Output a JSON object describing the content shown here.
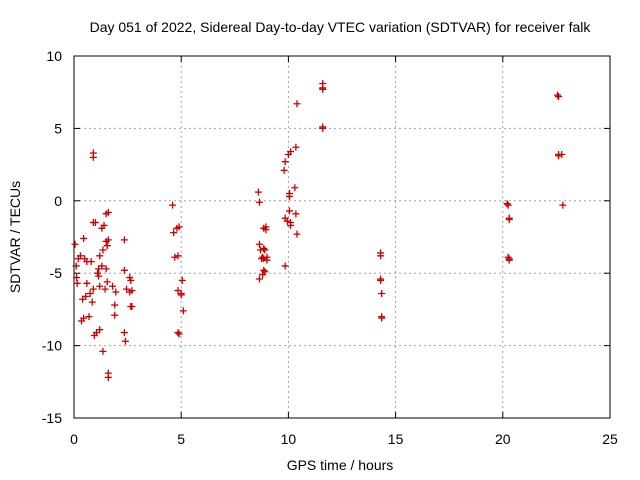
{
  "chart_data": {
    "type": "scatter",
    "title": "Day 051 of 2022, Sidereal Day-to-day VTEC variation (SDTVAR) for receiver falk",
    "xlabel": "GPS time / hours",
    "ylabel": "SDTVAR / TECUs",
    "xlim": [
      0,
      25
    ],
    "ylim": [
      -15,
      10
    ],
    "xticks": [
      0,
      5,
      10,
      15,
      20,
      25
    ],
    "yticks": [
      -15,
      -10,
      -5,
      0,
      5,
      10
    ],
    "grid": true,
    "marker": "+",
    "series": [
      {
        "name": "SDTVAR",
        "color": "#cc0000",
        "points": [
          [
            0.05,
            -3.0
          ],
          [
            0.1,
            -4.5
          ],
          [
            0.12,
            -5.3
          ],
          [
            0.15,
            -5.7
          ],
          [
            0.2,
            -4.0
          ],
          [
            0.3,
            -3.8
          ],
          [
            0.35,
            -8.3
          ],
          [
            0.4,
            -6.8
          ],
          [
            0.45,
            -8.1
          ],
          [
            0.45,
            -2.6
          ],
          [
            0.5,
            -4.0
          ],
          [
            0.55,
            -6.6
          ],
          [
            0.6,
            -4.2
          ],
          [
            0.6,
            -5.7
          ],
          [
            0.7,
            -8.0
          ],
          [
            0.75,
            -6.4
          ],
          [
            0.8,
            -4.2
          ],
          [
            0.85,
            -7.0
          ],
          [
            0.9,
            3.3
          ],
          [
            0.9,
            3.0
          ],
          [
            0.9,
            -1.5
          ],
          [
            0.9,
            -6.1
          ],
          [
            0.95,
            -9.3
          ],
          [
            1.0,
            -1.5
          ],
          [
            1.05,
            -9.1
          ],
          [
            1.1,
            -5.0
          ],
          [
            1.15,
            -5.2
          ],
          [
            1.15,
            -4.7
          ],
          [
            1.2,
            -3.8
          ],
          [
            1.2,
            -5.9
          ],
          [
            1.2,
            -8.9
          ],
          [
            1.3,
            -1.9
          ],
          [
            1.3,
            -4.5
          ],
          [
            1.35,
            -3.4
          ],
          [
            1.35,
            -10.4
          ],
          [
            1.4,
            -1.7
          ],
          [
            1.45,
            -6.1
          ],
          [
            1.5,
            -4.7
          ],
          [
            1.5,
            -2.8
          ],
          [
            1.5,
            -0.9
          ],
          [
            1.55,
            -3.1
          ],
          [
            1.55,
            -5.6
          ],
          [
            1.6,
            -12.2
          ],
          [
            1.6,
            -11.9
          ],
          [
            1.6,
            -2.7
          ],
          [
            1.6,
            -0.8
          ],
          [
            1.8,
            -5.9
          ],
          [
            1.9,
            -7.2
          ],
          [
            1.9,
            -7.9
          ],
          [
            1.95,
            -6.3
          ],
          [
            2.35,
            -2.7
          ],
          [
            2.35,
            -4.8
          ],
          [
            2.35,
            -9.1
          ],
          [
            2.4,
            -9.7
          ],
          [
            2.45,
            -6.1
          ],
          [
            2.6,
            -5.3
          ],
          [
            2.6,
            -6.3
          ],
          [
            2.65,
            -5.5
          ],
          [
            2.65,
            -7.3
          ],
          [
            2.7,
            -6.2
          ],
          [
            2.7,
            -7.3
          ],
          [
            4.6,
            -0.3
          ],
          [
            4.65,
            -2.2
          ],
          [
            4.7,
            -3.9
          ],
          [
            4.8,
            -1.9
          ],
          [
            4.85,
            -3.8
          ],
          [
            4.85,
            -6.2
          ],
          [
            4.85,
            -9.1
          ],
          [
            4.9,
            -9.2
          ],
          [
            4.9,
            -1.8
          ],
          [
            5.0,
            -6.4
          ],
          [
            5.0,
            -6.5
          ],
          [
            5.05,
            -5.5
          ],
          [
            5.1,
            -7.6
          ],
          [
            8.6,
            0.6
          ],
          [
            8.65,
            -0.1
          ],
          [
            8.65,
            -3.0
          ],
          [
            8.65,
            -5.4
          ],
          [
            8.7,
            -3.4
          ],
          [
            8.75,
            -4.0
          ],
          [
            8.8,
            -3.9
          ],
          [
            8.8,
            -5.1
          ],
          [
            8.85,
            -1.9
          ],
          [
            8.85,
            -3.3
          ],
          [
            8.85,
            -4.0
          ],
          [
            8.85,
            -4.8
          ],
          [
            8.9,
            -3.4
          ],
          [
            8.9,
            -4.9
          ],
          [
            8.95,
            -2.0
          ],
          [
            8.95,
            -1.8
          ],
          [
            9.0,
            -3.9
          ],
          [
            9.0,
            -4.1
          ],
          [
            9.8,
            2.1
          ],
          [
            9.85,
            2.7
          ],
          [
            9.85,
            -1.2
          ],
          [
            9.85,
            -4.5
          ],
          [
            9.95,
            -1.4
          ],
          [
            10.0,
            3.2
          ],
          [
            10.05,
            0.5
          ],
          [
            10.05,
            0.3
          ],
          [
            10.05,
            -0.7
          ],
          [
            10.1,
            -1.5
          ],
          [
            10.1,
            -1.7
          ],
          [
            10.1,
            3.4
          ],
          [
            10.3,
            0.9
          ],
          [
            10.35,
            3.7
          ],
          [
            10.35,
            -0.9
          ],
          [
            10.4,
            -2.3
          ],
          [
            10.4,
            6.7
          ],
          [
            11.6,
            8.1
          ],
          [
            11.6,
            7.8
          ],
          [
            11.6,
            7.7
          ],
          [
            11.6,
            5.1
          ],
          [
            11.6,
            5.0
          ],
          [
            14.3,
            -3.6
          ],
          [
            14.3,
            -3.8
          ],
          [
            14.3,
            -5.4
          ],
          [
            14.3,
            -5.5
          ],
          [
            14.35,
            -6.4
          ],
          [
            14.35,
            -8.0
          ],
          [
            14.35,
            -8.1
          ],
          [
            20.2,
            -0.2
          ],
          [
            20.25,
            -0.3
          ],
          [
            20.3,
            -1.2
          ],
          [
            20.3,
            -1.3
          ],
          [
            20.25,
            -3.9
          ],
          [
            20.3,
            -4.0
          ],
          [
            20.3,
            -4.1
          ],
          [
            22.55,
            7.3
          ],
          [
            22.6,
            7.2
          ],
          [
            22.6,
            3.2
          ],
          [
            22.6,
            3.1
          ],
          [
            22.75,
            3.2
          ],
          [
            22.8,
            -0.3
          ]
        ]
      }
    ]
  }
}
